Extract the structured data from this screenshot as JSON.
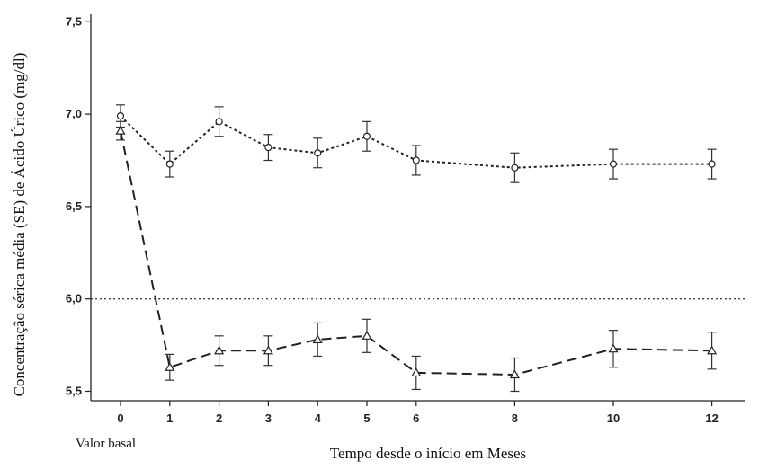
{
  "chart_data": {
    "type": "line",
    "xlabel": "Tempo desde o início em Meses",
    "ylabel": "Concentração sérica média (SE) de Ácido Úrico (mg/dl)",
    "baseline_note": "Valor basal",
    "x_ticks": [
      0,
      1,
      2,
      3,
      4,
      5,
      6,
      8,
      10,
      12
    ],
    "y_ticks": [
      "5,5",
      "6,0",
      "6,5",
      "7,0",
      "7,5"
    ],
    "y_tick_values": [
      5.5,
      6.0,
      6.5,
      7.0,
      7.5
    ],
    "xlim": [
      -0.6,
      12.6
    ],
    "ylim": [
      5.5,
      7.5
    ],
    "reference_line": 6.0,
    "grid": false,
    "series": [
      {
        "marker": "circle",
        "line_style": "dotted",
        "x": [
          0,
          1,
          2,
          3,
          4,
          5,
          6,
          8,
          10,
          12
        ],
        "y": [
          6.99,
          6.73,
          6.96,
          6.82,
          6.79,
          6.88,
          6.75,
          6.71,
          6.73,
          6.73
        ],
        "se": [
          0.06,
          0.07,
          0.08,
          0.07,
          0.08,
          0.08,
          0.08,
          0.08,
          0.08,
          0.08
        ]
      },
      {
        "marker": "triangle",
        "line_style": "dashed",
        "x": [
          0,
          1,
          2,
          3,
          4,
          5,
          6,
          8,
          10,
          12
        ],
        "y": [
          6.91,
          5.63,
          5.72,
          5.72,
          5.78,
          5.8,
          5.6,
          5.59,
          5.73,
          5.72
        ],
        "se": [
          0.05,
          0.07,
          0.08,
          0.08,
          0.09,
          0.09,
          0.09,
          0.09,
          0.1,
          0.1
        ]
      }
    ]
  }
}
